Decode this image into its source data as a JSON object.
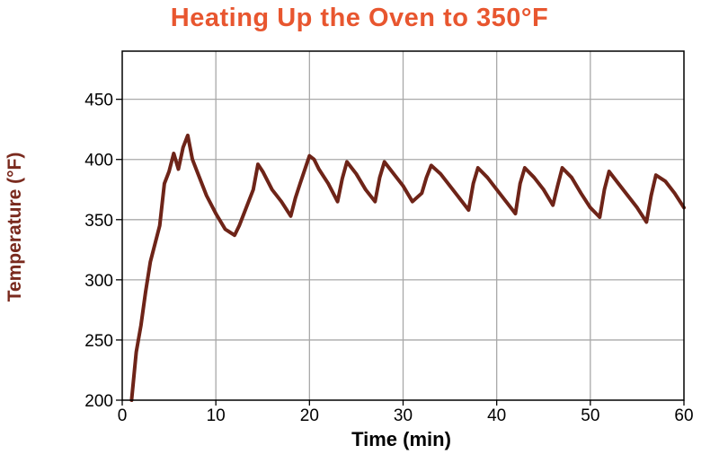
{
  "chart_data": {
    "type": "line",
    "title": "Heating Up the Oven to 350°F",
    "xlabel": "Time (min)",
    "ylabel": "Temperature (°F)",
    "xlim": [
      0,
      60
    ],
    "ylim": [
      200,
      490
    ],
    "xticks": [
      0,
      10,
      20,
      30,
      40,
      50,
      60
    ],
    "yticks": [
      200,
      250,
      300,
      350,
      400,
      450
    ],
    "grid": true,
    "line_color": "#6e2418",
    "title_color": "#e8562f",
    "ylabel_color": "#7a2a1e",
    "series": [
      {
        "x": [
          1,
          1.5,
          2,
          2.5,
          3,
          3.5,
          4,
          4.5,
          5,
          5.5,
          6,
          6.5,
          7,
          7.5,
          8,
          9,
          10,
          11,
          12,
          12.5,
          13,
          14,
          14.5,
          15,
          16,
          17,
          18,
          18.5,
          19,
          20,
          20.5,
          21,
          22,
          23,
          23.5,
          24,
          25,
          26,
          27,
          27.5,
          28,
          29,
          30,
          31,
          32,
          32.5,
          33,
          34,
          35,
          36,
          37,
          37.5,
          38,
          39,
          40,
          41,
          42,
          42.5,
          43,
          44,
          45,
          46,
          46.5,
          47,
          48,
          49,
          50,
          51,
          51.5,
          52,
          53,
          54,
          55,
          56,
          56.5,
          57,
          58,
          59,
          60
        ],
        "y": [
          200,
          240,
          262,
          290,
          315,
          330,
          345,
          380,
          390,
          405,
          392,
          410,
          420,
          400,
          390,
          370,
          355,
          342,
          337,
          345,
          355,
          375,
          396,
          390,
          375,
          365,
          353,
          368,
          380,
          403,
          400,
          392,
          380,
          365,
          384,
          398,
          388,
          375,
          365,
          385,
          398,
          388,
          378,
          365,
          372,
          385,
          395,
          388,
          378,
          368,
          358,
          380,
          393,
          385,
          375,
          365,
          355,
          380,
          393,
          385,
          375,
          362,
          378,
          393,
          385,
          372,
          360,
          352,
          375,
          390,
          380,
          370,
          360,
          348,
          370,
          387,
          382,
          372,
          360
        ]
      }
    ]
  }
}
